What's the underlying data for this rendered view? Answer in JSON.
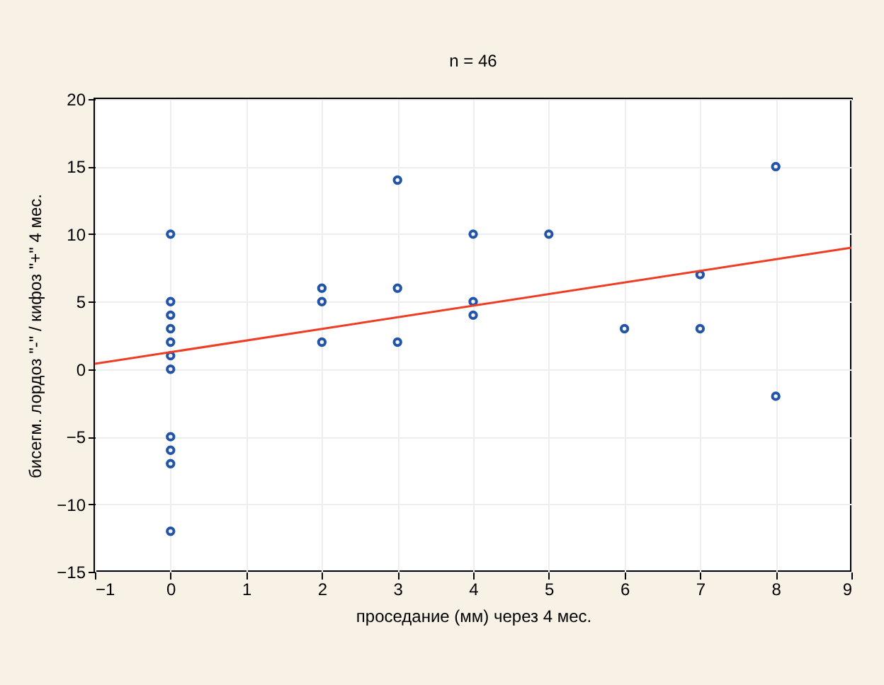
{
  "chart_data": {
    "type": "scatter",
    "title": "n = 46",
    "xlabel": "проседание (мм) через 4 мес.",
    "ylabel": "бисегм. лордоз \"-\" / кифоз \"+\" 4 мес.",
    "xlim": [
      -1,
      9
    ],
    "ylim": [
      -15,
      20
    ],
    "xticks": [
      -1,
      0,
      1,
      2,
      3,
      4,
      5,
      6,
      7,
      8,
      9
    ],
    "yticks": [
      -15,
      -10,
      -5,
      0,
      5,
      10,
      15,
      20
    ],
    "grid": true,
    "series": [
      {
        "marker": "circle",
        "color": "#2255aa",
        "x": [
          0,
          0,
          0,
          0,
          0,
          0,
          0,
          0,
          0,
          0,
          0,
          2,
          2,
          2,
          3,
          3,
          3,
          4,
          4,
          4,
          5,
          6,
          7,
          7,
          8,
          8
        ],
        "values": [
          10,
          5,
          4,
          3,
          2,
          1,
          0,
          -5,
          -6,
          -7,
          -12,
          6,
          5,
          2,
          14,
          6,
          2,
          10,
          5,
          4,
          10,
          3,
          7,
          3,
          15,
          -2
        ]
      },
      {
        "type": "line",
        "color": "#f03c24",
        "x": [
          -1,
          9
        ],
        "values": [
          0.4,
          9
        ]
      }
    ]
  }
}
